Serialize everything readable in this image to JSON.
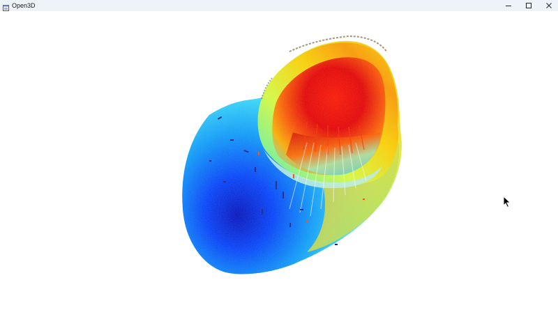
{
  "window": {
    "title": "Open3D",
    "icons": {
      "app": "app-window-icon",
      "minimize": "minimize-icon",
      "maximize": "maximize-icon",
      "close": "close-icon"
    }
  },
  "viewport": {
    "background": "#ffffff",
    "content": "3d-mesh-render",
    "colormap": [
      "#0000cc",
      "#0090ff",
      "#36e0ff",
      "#d8ff30",
      "#ffd800",
      "#ff2000",
      "#c80000"
    ]
  },
  "cursor": {
    "icon": "mouse-pointer-icon"
  }
}
